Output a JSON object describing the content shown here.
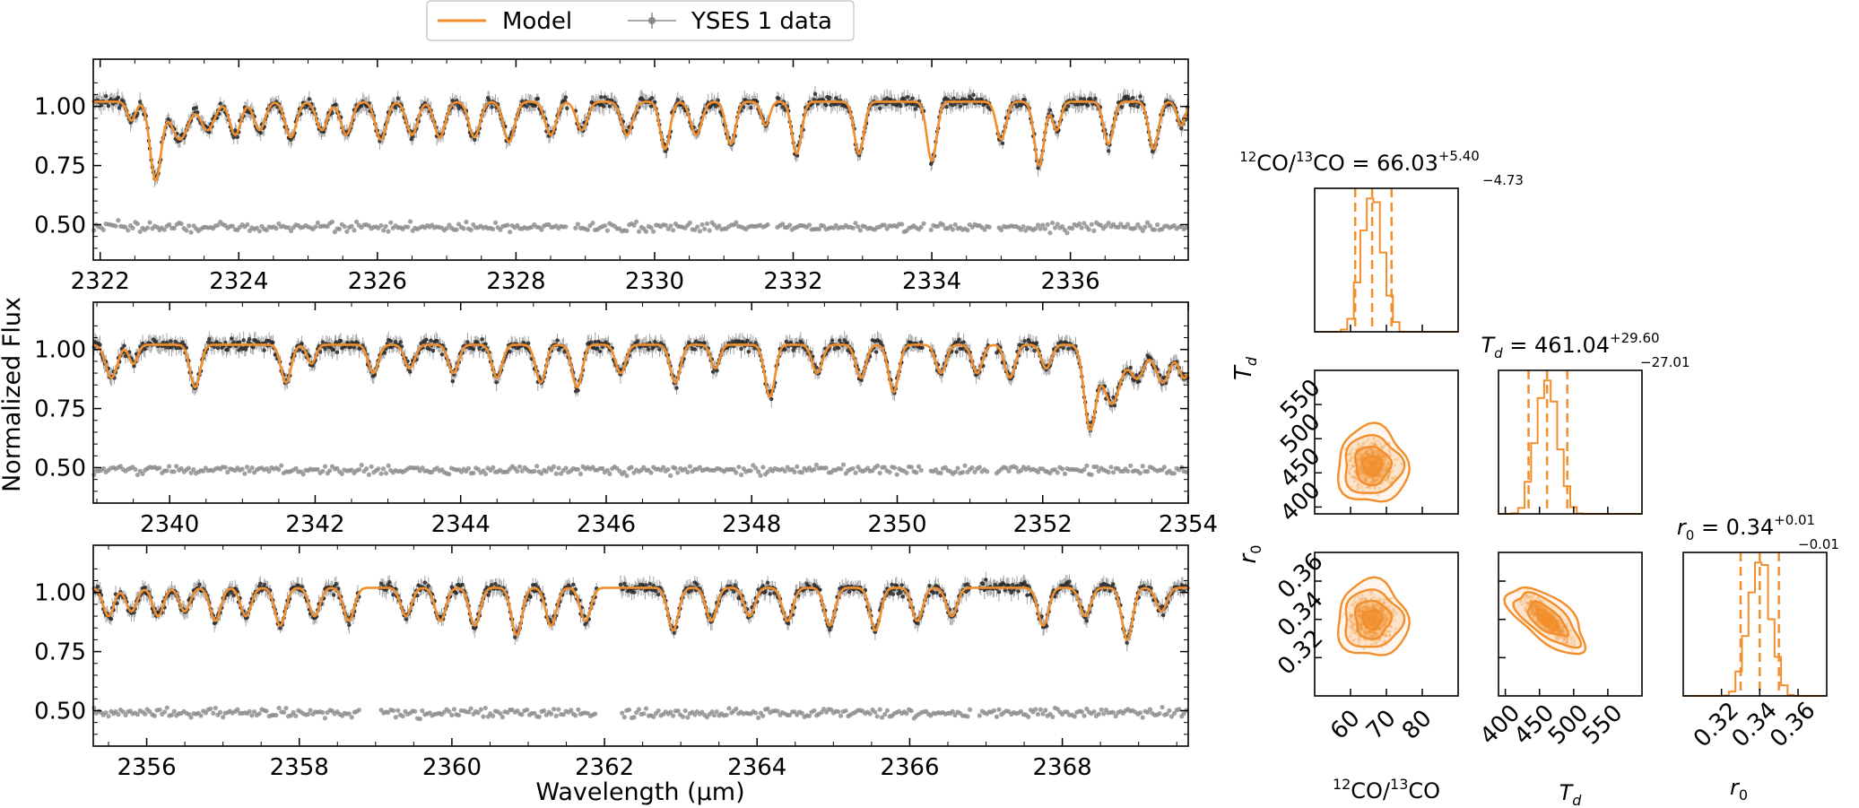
{
  "colors": {
    "model": "#f28e2b",
    "data": "#111111",
    "residual": "#8a8a8a",
    "corner": "#f28e2b"
  },
  "legend": {
    "model_label": "Model",
    "data_label": "YSES 1 data"
  },
  "ylabel": "Normalized Flux",
  "xlabel": "Wavelength (μm)",
  "chart_data": [
    {
      "type": "line",
      "panel": "spectrum-1",
      "x_range": [
        2321.9,
        2337.7
      ],
      "ylim": [
        0.35,
        1.2
      ],
      "x_ticks": [
        2322,
        2324,
        2326,
        2328,
        2330,
        2332,
        2334,
        2336
      ],
      "y_ticks": [
        0.5,
        0.75,
        1.0
      ],
      "y_tick_labels": [
        "0.50",
        "0.75",
        "1.00"
      ],
      "continuum": 1.02,
      "residual_level": 0.49,
      "lines": [
        {
          "x": 2322.45,
          "d": 0.08,
          "w": 0.06
        },
        {
          "x": 2322.8,
          "d": 0.33,
          "w": 0.08
        },
        {
          "x": 2323.15,
          "d": 0.16,
          "w": 0.12
        },
        {
          "x": 2323.55,
          "d": 0.12,
          "w": 0.1
        },
        {
          "x": 2323.95,
          "d": 0.14,
          "w": 0.08
        },
        {
          "x": 2324.3,
          "d": 0.12,
          "w": 0.08
        },
        {
          "x": 2324.75,
          "d": 0.15,
          "w": 0.08
        },
        {
          "x": 2325.2,
          "d": 0.12,
          "w": 0.08
        },
        {
          "x": 2325.55,
          "d": 0.14,
          "w": 0.08
        },
        {
          "x": 2326.05,
          "d": 0.16,
          "w": 0.08
        },
        {
          "x": 2326.5,
          "d": 0.14,
          "w": 0.08
        },
        {
          "x": 2326.9,
          "d": 0.15,
          "w": 0.08
        },
        {
          "x": 2327.4,
          "d": 0.15,
          "w": 0.08
        },
        {
          "x": 2327.9,
          "d": 0.17,
          "w": 0.08
        },
        {
          "x": 2328.5,
          "d": 0.14,
          "w": 0.08
        },
        {
          "x": 2328.95,
          "d": 0.12,
          "w": 0.08
        },
        {
          "x": 2329.6,
          "d": 0.14,
          "w": 0.08
        },
        {
          "x": 2330.15,
          "d": 0.2,
          "w": 0.07
        },
        {
          "x": 2330.6,
          "d": 0.14,
          "w": 0.08
        },
        {
          "x": 2331.1,
          "d": 0.18,
          "w": 0.07
        },
        {
          "x": 2331.6,
          "d": 0.1,
          "w": 0.06
        },
        {
          "x": 2332.05,
          "d": 0.22,
          "w": 0.07
        },
        {
          "x": 2332.95,
          "d": 0.22,
          "w": 0.07
        },
        {
          "x": 2334.0,
          "d": 0.25,
          "w": 0.07
        },
        {
          "x": 2335.0,
          "d": 0.16,
          "w": 0.07
        },
        {
          "x": 2335.55,
          "d": 0.27,
          "w": 0.07
        },
        {
          "x": 2335.8,
          "d": 0.12,
          "w": 0.06
        },
        {
          "x": 2336.55,
          "d": 0.18,
          "w": 0.07
        },
        {
          "x": 2337.2,
          "d": 0.2,
          "w": 0.07
        },
        {
          "x": 2337.6,
          "d": 0.1,
          "w": 0.06
        }
      ],
      "gaps": [
        [
          2328.75,
          2328.85
        ],
        [
          2331.65,
          2331.75
        ],
        [
          2333.9,
          2333.98
        ],
        [
          2334.85,
          2334.95
        ]
      ]
    },
    {
      "type": "line",
      "panel": "spectrum-2",
      "x_range": [
        2338.95,
        2354.0
      ],
      "ylim": [
        0.35,
        1.2
      ],
      "x_ticks": [
        2340,
        2342,
        2344,
        2346,
        2348,
        2350,
        2352,
        2354
      ],
      "y_ticks": [
        0.5,
        0.75,
        1.0
      ],
      "y_tick_labels": [
        "0.50",
        "0.75",
        "1.00"
      ],
      "continuum": 1.02,
      "residual_level": 0.49,
      "lines": [
        {
          "x": 2339.2,
          "d": 0.14,
          "w": 0.08
        },
        {
          "x": 2339.5,
          "d": 0.08,
          "w": 0.06
        },
        {
          "x": 2340.35,
          "d": 0.18,
          "w": 0.07
        },
        {
          "x": 2341.6,
          "d": 0.16,
          "w": 0.07
        },
        {
          "x": 2341.95,
          "d": 0.08,
          "w": 0.06
        },
        {
          "x": 2342.8,
          "d": 0.12,
          "w": 0.07
        },
        {
          "x": 2343.3,
          "d": 0.1,
          "w": 0.07
        },
        {
          "x": 2343.9,
          "d": 0.12,
          "w": 0.07
        },
        {
          "x": 2344.5,
          "d": 0.14,
          "w": 0.07
        },
        {
          "x": 2345.1,
          "d": 0.16,
          "w": 0.07
        },
        {
          "x": 2345.6,
          "d": 0.18,
          "w": 0.07
        },
        {
          "x": 2346.2,
          "d": 0.12,
          "w": 0.07
        },
        {
          "x": 2346.95,
          "d": 0.16,
          "w": 0.07
        },
        {
          "x": 2347.5,
          "d": 0.1,
          "w": 0.06
        },
        {
          "x": 2348.25,
          "d": 0.22,
          "w": 0.07
        },
        {
          "x": 2348.9,
          "d": 0.12,
          "w": 0.07
        },
        {
          "x": 2349.5,
          "d": 0.14,
          "w": 0.07
        },
        {
          "x": 2349.95,
          "d": 0.2,
          "w": 0.07
        },
        {
          "x": 2350.6,
          "d": 0.12,
          "w": 0.07
        },
        {
          "x": 2351.1,
          "d": 0.12,
          "w": 0.07
        },
        {
          "x": 2351.55,
          "d": 0.14,
          "w": 0.07
        },
        {
          "x": 2352.05,
          "d": 0.1,
          "w": 0.07
        },
        {
          "x": 2352.65,
          "d": 0.35,
          "w": 0.08
        },
        {
          "x": 2352.95,
          "d": 0.25,
          "w": 0.12
        },
        {
          "x": 2353.3,
          "d": 0.14,
          "w": 0.1
        },
        {
          "x": 2353.65,
          "d": 0.16,
          "w": 0.1
        },
        {
          "x": 2353.95,
          "d": 0.14,
          "w": 0.08
        }
      ],
      "gaps": [
        [
          2350.35,
          2350.45
        ],
        [
          2351.25,
          2351.35
        ]
      ]
    },
    {
      "type": "line",
      "panel": "spectrum-3",
      "x_range": [
        2355.3,
        2369.65
      ],
      "ylim": [
        0.35,
        1.2
      ],
      "x_ticks": [
        2356,
        2358,
        2360,
        2362,
        2364,
        2366,
        2368
      ],
      "y_ticks": [
        0.5,
        0.75,
        1.0
      ],
      "y_tick_labels": [
        "0.50",
        "0.75",
        "1.00"
      ],
      "continuum": 1.02,
      "residual_level": 0.49,
      "lines": [
        {
          "x": 2355.5,
          "d": 0.12,
          "w": 0.07
        },
        {
          "x": 2355.8,
          "d": 0.1,
          "w": 0.07
        },
        {
          "x": 2356.15,
          "d": 0.12,
          "w": 0.07
        },
        {
          "x": 2356.5,
          "d": 0.1,
          "w": 0.07
        },
        {
          "x": 2356.9,
          "d": 0.14,
          "w": 0.07
        },
        {
          "x": 2357.3,
          "d": 0.12,
          "w": 0.07
        },
        {
          "x": 2357.75,
          "d": 0.16,
          "w": 0.07
        },
        {
          "x": 2358.2,
          "d": 0.12,
          "w": 0.07
        },
        {
          "x": 2358.65,
          "d": 0.14,
          "w": 0.07
        },
        {
          "x": 2359.4,
          "d": 0.12,
          "w": 0.07
        },
        {
          "x": 2359.85,
          "d": 0.14,
          "w": 0.07
        },
        {
          "x": 2360.3,
          "d": 0.16,
          "w": 0.07
        },
        {
          "x": 2360.85,
          "d": 0.2,
          "w": 0.07
        },
        {
          "x": 2361.3,
          "d": 0.16,
          "w": 0.07
        },
        {
          "x": 2361.75,
          "d": 0.14,
          "w": 0.07
        },
        {
          "x": 2362.9,
          "d": 0.18,
          "w": 0.07
        },
        {
          "x": 2363.4,
          "d": 0.14,
          "w": 0.07
        },
        {
          "x": 2363.9,
          "d": 0.12,
          "w": 0.07
        },
        {
          "x": 2364.4,
          "d": 0.14,
          "w": 0.07
        },
        {
          "x": 2364.95,
          "d": 0.16,
          "w": 0.07
        },
        {
          "x": 2365.55,
          "d": 0.18,
          "w": 0.07
        },
        {
          "x": 2366.1,
          "d": 0.14,
          "w": 0.07
        },
        {
          "x": 2366.55,
          "d": 0.12,
          "w": 0.07
        },
        {
          "x": 2367.75,
          "d": 0.16,
          "w": 0.07
        },
        {
          "x": 2368.3,
          "d": 0.12,
          "w": 0.07
        },
        {
          "x": 2368.85,
          "d": 0.22,
          "w": 0.07
        },
        {
          "x": 2369.3,
          "d": 0.1,
          "w": 0.07
        }
      ],
      "gaps": [
        [
          2358.8,
          2359.05
        ],
        [
          2361.9,
          2362.2
        ],
        [
          2366.8,
          2366.9
        ]
      ]
    },
    {
      "type": "corner",
      "parameters": [
        {
          "key": "co_ratio",
          "name": "12CO/13CO",
          "median": 66.03,
          "lower": 4.73,
          "upper": 5.4,
          "range": [
            50,
            90
          ],
          "ticks": [
            60,
            70,
            80
          ]
        },
        {
          "key": "td",
          "name": "T_d",
          "median": 461.04,
          "lower": 27.01,
          "upper": 29.6,
          "range": [
            390,
            600
          ],
          "ticks": [
            400,
            450,
            500,
            550
          ]
        },
        {
          "key": "r0",
          "name": "r_0",
          "median": 0.34,
          "lower": 0.01,
          "upper": 0.01,
          "range": [
            0.3,
            0.375
          ],
          "ticks": [
            0.32,
            0.34,
            0.36
          ]
        }
      ],
      "titles": [
        {
          "prefix": "CO/",
          "mid": "CO = 66.03",
          "sup": "+5.40",
          "sub": "−4.73",
          "iso1": "12",
          "iso2": "13"
        },
        {
          "prefix": "T",
          "mid": " = 461.04",
          "sup": "+29.60",
          "sub": "−27.01",
          "index": "d"
        },
        {
          "prefix": "r",
          "mid": " = 0.34",
          "sup": "+0.01",
          "sub": "−0.01",
          "index": "0"
        }
      ],
      "axis_labels": {
        "co_ratio_x": {
          "iso1": "12",
          "a": "CO/",
          "iso2": "13",
          "b": "CO"
        },
        "td": {
          "sym": "T",
          "idx": "d"
        },
        "r0": {
          "sym": "r",
          "idx": "0"
        }
      },
      "tick_labels": {
        "co_ratio": [
          "60",
          "70",
          "80"
        ],
        "td": [
          "400",
          "450",
          "500",
          "550"
        ],
        "r0": [
          "0.32",
          "0.34",
          "0.36"
        ]
      },
      "correlation": {
        "co_td": 0.0,
        "co_r0": 0.0,
        "td_r0": -0.85
      }
    }
  ]
}
